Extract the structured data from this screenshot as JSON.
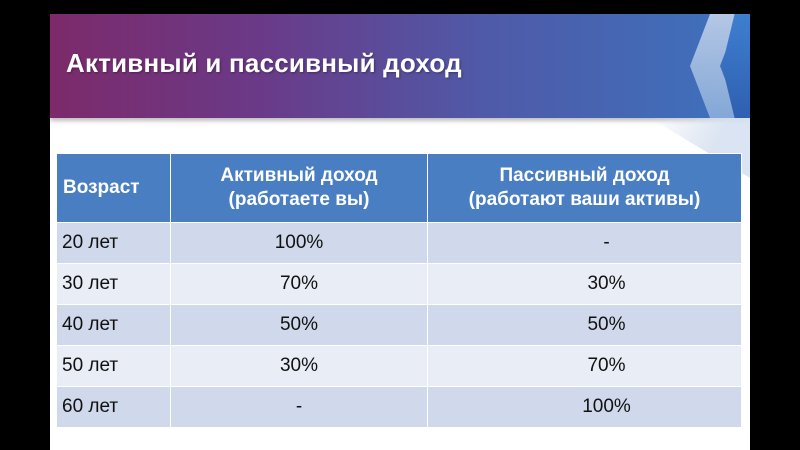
{
  "slide": {
    "title": "Активный и пассивный доход"
  },
  "table": {
    "headers": [
      {
        "line1": "Возраст",
        "line2": ""
      },
      {
        "line1": "Активный доход",
        "line2": "(работаете вы)"
      },
      {
        "line1": "Пассивный доход",
        "line2": "(работают ваши активы)"
      }
    ],
    "rows": [
      {
        "age": "20 лет",
        "active": "100%",
        "passive": "-"
      },
      {
        "age": "30 лет",
        "active": "70%",
        "passive": "30%"
      },
      {
        "age": "40 лет",
        "active": "50%",
        "passive": "50%"
      },
      {
        "age": "50 лет",
        "active": "30%",
        "passive": "70%"
      },
      {
        "age": "60 лет",
        "active": "-",
        "passive": "100%"
      }
    ]
  },
  "colors": {
    "header_bg": "#4a7ec2",
    "row_dark": "#d0d9ec",
    "row_light": "#e9edf6",
    "title_gradient_start": "#7c2a6a",
    "title_gradient_end": "#3d72bd"
  }
}
